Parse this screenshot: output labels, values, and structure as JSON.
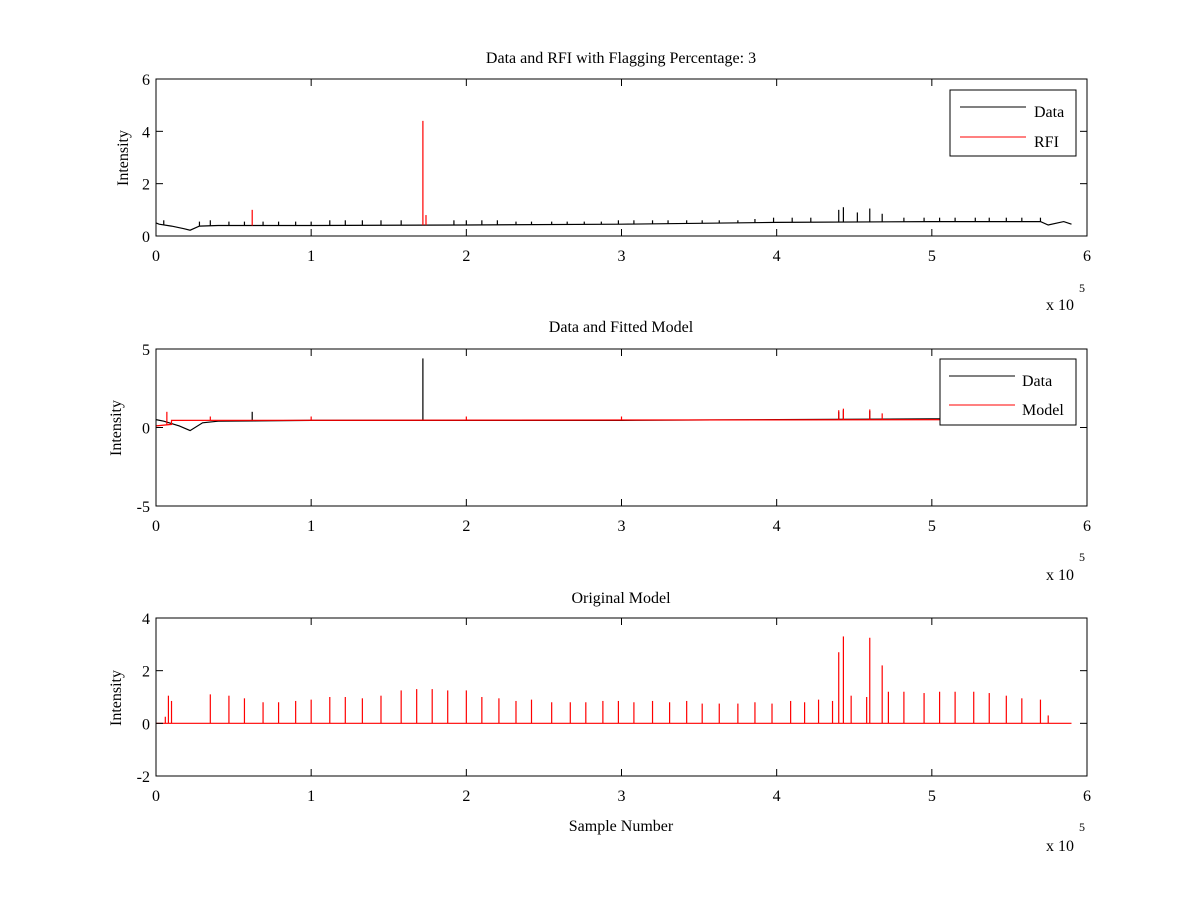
{
  "figure": {
    "background": "#ffffff",
    "data_color": "#000000",
    "rfi_color": "#ff0000",
    "model_color": "#ff0000"
  },
  "chart_data": [
    {
      "type": "line",
      "title": "Data and RFI with Flagging Percentage: 3",
      "xlabel": "",
      "ylabel": "Intensity",
      "xlim": [
        0,
        6
      ],
      "ylim": [
        0,
        6
      ],
      "xticks": [
        "0",
        "1",
        "2",
        "3",
        "4",
        "5",
        "6"
      ],
      "yticks": [
        "0",
        "2",
        "4",
        "6"
      ],
      "x_multiplier": {
        "base": "x 10",
        "exponent": "5"
      },
      "legend": {
        "position": "top-right",
        "entries": [
          "Data",
          "RFI"
        ]
      },
      "grid": false,
      "series": [
        {
          "name": "Data",
          "color": "#000000",
          "baseline": [
            [
              0.0,
              0.5
            ],
            [
              0.02,
              0.45
            ],
            [
              0.1,
              0.38
            ],
            [
              0.18,
              0.28
            ],
            [
              0.22,
              0.22
            ],
            [
              0.28,
              0.38
            ],
            [
              0.4,
              0.4
            ],
            [
              1.0,
              0.4
            ],
            [
              2.0,
              0.42
            ],
            [
              3.0,
              0.45
            ],
            [
              4.0,
              0.52
            ],
            [
              5.0,
              0.55
            ],
            [
              5.7,
              0.55
            ],
            [
              5.75,
              0.42
            ],
            [
              5.85,
              0.55
            ],
            [
              5.9,
              0.45
            ]
          ],
          "spikes": [
            [
              0.05,
              0.6
            ],
            [
              0.28,
              0.55
            ],
            [
              0.35,
              0.6
            ],
            [
              0.47,
              0.55
            ],
            [
              0.57,
              0.55
            ],
            [
              0.69,
              0.55
            ],
            [
              0.79,
              0.55
            ],
            [
              0.9,
              0.55
            ],
            [
              1.0,
              0.55
            ],
            [
              1.12,
              0.6
            ],
            [
              1.22,
              0.6
            ],
            [
              1.33,
              0.6
            ],
            [
              1.45,
              0.6
            ],
            [
              1.58,
              0.6
            ],
            [
              1.92,
              0.6
            ],
            [
              2.0,
              0.6
            ],
            [
              2.1,
              0.6
            ],
            [
              2.2,
              0.6
            ],
            [
              2.32,
              0.55
            ],
            [
              2.42,
              0.55
            ],
            [
              2.55,
              0.55
            ],
            [
              2.65,
              0.55
            ],
            [
              2.76,
              0.55
            ],
            [
              2.87,
              0.55
            ],
            [
              2.98,
              0.6
            ],
            [
              3.08,
              0.6
            ],
            [
              3.2,
              0.6
            ],
            [
              3.3,
              0.6
            ],
            [
              3.42,
              0.6
            ],
            [
              3.52,
              0.6
            ],
            [
              3.63,
              0.6
            ],
            [
              3.75,
              0.6
            ],
            [
              3.86,
              0.65
            ],
            [
              3.98,
              0.7
            ],
            [
              4.1,
              0.7
            ],
            [
              4.22,
              0.7
            ],
            [
              4.4,
              1.0
            ],
            [
              4.43,
              1.1
            ],
            [
              4.52,
              0.9
            ],
            [
              4.6,
              1.05
            ],
            [
              4.68,
              0.85
            ],
            [
              4.82,
              0.7
            ],
            [
              4.95,
              0.7
            ],
            [
              5.05,
              0.7
            ],
            [
              5.15,
              0.7
            ],
            [
              5.28,
              0.7
            ],
            [
              5.37,
              0.7
            ],
            [
              5.48,
              0.7
            ],
            [
              5.58,
              0.7
            ],
            [
              5.7,
              0.7
            ]
          ]
        },
        {
          "name": "RFI",
          "color": "#ff0000",
          "spikes": [
            [
              0.62,
              1.0
            ],
            [
              1.72,
              4.4
            ],
            [
              1.74,
              0.8
            ]
          ]
        }
      ]
    },
    {
      "type": "line",
      "title": "Data and Fitted Model",
      "xlabel": "",
      "ylabel": "Intensity",
      "xlim": [
        0,
        6
      ],
      "ylim": [
        -5,
        5
      ],
      "xticks": [
        "0",
        "1",
        "2",
        "3",
        "4",
        "5",
        "6"
      ],
      "yticks": [
        "-5",
        "0",
        "5"
      ],
      "x_multiplier": {
        "base": "x 10",
        "exponent": "5"
      },
      "legend": {
        "position": "top-right",
        "entries": [
          "Data",
          "Model"
        ]
      },
      "grid": false,
      "series": [
        {
          "name": "Data",
          "color": "#000000",
          "baseline": [
            [
              0.0,
              0.5
            ],
            [
              0.05,
              0.4
            ],
            [
              0.15,
              0.1
            ],
            [
              0.22,
              -0.2
            ],
            [
              0.3,
              0.3
            ],
            [
              0.4,
              0.4
            ],
            [
              1.0,
              0.45
            ],
            [
              2.0,
              0.45
            ],
            [
              3.0,
              0.45
            ],
            [
              4.0,
              0.5
            ],
            [
              5.0,
              0.55
            ],
            [
              5.9,
              0.55
            ]
          ],
          "spikes": [
            [
              0.62,
              1.0
            ],
            [
              1.72,
              4.4
            ],
            [
              4.4,
              1.0
            ],
            [
              4.43,
              1.1
            ],
            [
              4.6,
              1.05
            ]
          ]
        },
        {
          "name": "Model",
          "color": "#ff0000",
          "baseline": [
            [
              0.0,
              0.1
            ],
            [
              0.1,
              0.2
            ],
            [
              0.1,
              0.45
            ],
            [
              5.9,
              0.5
            ]
          ],
          "spikes": [
            [
              0.07,
              1.0
            ],
            [
              0.35,
              0.7
            ],
            [
              1.0,
              0.7
            ],
            [
              2.0,
              0.7
            ],
            [
              3.0,
              0.7
            ],
            [
              4.4,
              1.1
            ],
            [
              4.43,
              1.2
            ],
            [
              4.6,
              1.15
            ],
            [
              4.68,
              0.9
            ]
          ]
        }
      ]
    },
    {
      "type": "line",
      "title": "Original Model",
      "xlabel": "Sample Number",
      "ylabel": "Intensity",
      "xlim": [
        0,
        6
      ],
      "ylim": [
        -2,
        4
      ],
      "xticks": [
        "0",
        "1",
        "2",
        "3",
        "4",
        "5",
        "6"
      ],
      "yticks": [
        "-2",
        "0",
        "2",
        "4"
      ],
      "x_multiplier": {
        "base": "x 10",
        "exponent": "5"
      },
      "legend": null,
      "grid": false,
      "series": [
        {
          "name": "",
          "color": "#ff0000",
          "baseline": [
            [
              0.0,
              0.0
            ],
            [
              5.9,
              0.0
            ]
          ],
          "spikes": [
            [
              0.06,
              0.25
            ],
            [
              0.08,
              1.05
            ],
            [
              0.1,
              0.85
            ],
            [
              0.35,
              1.1
            ],
            [
              0.47,
              1.05
            ],
            [
              0.57,
              0.95
            ],
            [
              0.69,
              0.8
            ],
            [
              0.79,
              0.8
            ],
            [
              0.9,
              0.85
            ],
            [
              1.0,
              0.9
            ],
            [
              1.12,
              1.0
            ],
            [
              1.22,
              1.0
            ],
            [
              1.33,
              0.95
            ],
            [
              1.45,
              1.05
            ],
            [
              1.58,
              1.25
            ],
            [
              1.68,
              1.3
            ],
            [
              1.78,
              1.3
            ],
            [
              1.88,
              1.25
            ],
            [
              2.0,
              1.25
            ],
            [
              2.1,
              1.0
            ],
            [
              2.21,
              0.95
            ],
            [
              2.32,
              0.85
            ],
            [
              2.42,
              0.9
            ],
            [
              2.55,
              0.8
            ],
            [
              2.67,
              0.8
            ],
            [
              2.77,
              0.8
            ],
            [
              2.88,
              0.85
            ],
            [
              2.98,
              0.85
            ],
            [
              3.08,
              0.8
            ],
            [
              3.2,
              0.85
            ],
            [
              3.31,
              0.8
            ],
            [
              3.42,
              0.85
            ],
            [
              3.52,
              0.75
            ],
            [
              3.63,
              0.75
            ],
            [
              3.75,
              0.75
            ],
            [
              3.86,
              0.8
            ],
            [
              3.97,
              0.75
            ],
            [
              4.09,
              0.85
            ],
            [
              4.18,
              0.8
            ],
            [
              4.27,
              0.9
            ],
            [
              4.36,
              0.85
            ],
            [
              4.4,
              2.7
            ],
            [
              4.43,
              3.3
            ],
            [
              4.48,
              1.05
            ],
            [
              4.58,
              1.0
            ],
            [
              4.6,
              3.25
            ],
            [
              4.68,
              2.2
            ],
            [
              4.72,
              1.2
            ],
            [
              4.82,
              1.2
            ],
            [
              4.95,
              1.15
            ],
            [
              5.05,
              1.2
            ],
            [
              5.15,
              1.2
            ],
            [
              5.27,
              1.2
            ],
            [
              5.37,
              1.15
            ],
            [
              5.48,
              1.05
            ],
            [
              5.58,
              0.95
            ],
            [
              5.7,
              0.9
            ],
            [
              5.75,
              0.3
            ]
          ]
        }
      ]
    }
  ]
}
